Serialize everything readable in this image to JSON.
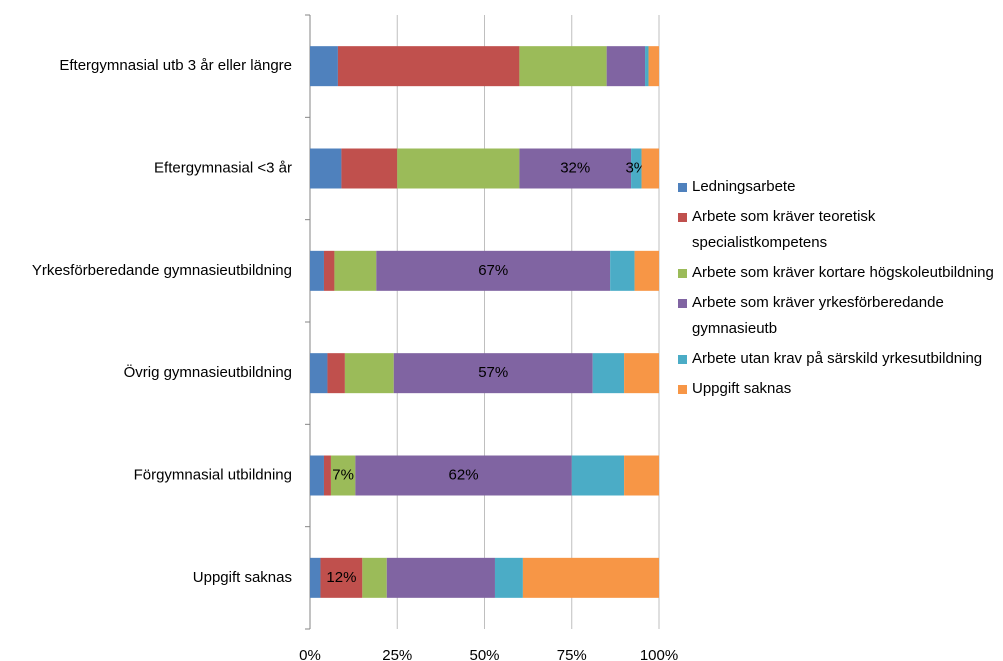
{
  "chart_data": {
    "type": "stacked-bar-horizontal",
    "categories": [
      "Eftergymnasial utb 3 år eller längre",
      "Eftergymnasial <3 år",
      "Yrkesförberedande gymnasieutbildning",
      "Övrig gymnasieutbildning",
      "Förgymnasial utbildning",
      "Uppgift saknas"
    ],
    "series": [
      {
        "name": "Ledningsarbete",
        "color": "#4f81bd",
        "values": [
          8,
          9,
          4,
          5,
          4,
          3
        ],
        "value_labels": [
          null,
          null,
          null,
          null,
          null,
          null
        ]
      },
      {
        "name": "Arbete som kräver teoretisk specialistkompetens",
        "color": "#c0504d",
        "values": [
          52,
          16,
          3,
          5,
          2,
          12
        ],
        "value_labels": [
          null,
          null,
          null,
          null,
          null,
          "12%"
        ]
      },
      {
        "name": "Arbete som kräver kortare högskoleutbildning",
        "color": "#9bbb59",
        "values": [
          25,
          35,
          12,
          14,
          7,
          7
        ],
        "value_labels": [
          null,
          null,
          null,
          null,
          "7%",
          null
        ]
      },
      {
        "name": "Arbete som kräver yrkesförberedande gymnasieutb",
        "color": "#8064a2",
        "values": [
          11,
          32,
          67,
          57,
          62,
          31
        ],
        "value_labels": [
          null,
          "32%",
          "67%",
          "57%",
          "62%",
          null
        ]
      },
      {
        "name": "Arbete utan krav på särskild yrkesutbildning",
        "color": "#4bacc6",
        "values": [
          1,
          3,
          7,
          9,
          15,
          8
        ],
        "value_labels": [
          null,
          "3%",
          null,
          null,
          null,
          null
        ]
      },
      {
        "name": "Uppgift saknas",
        "color": "#f79646",
        "values": [
          3,
          5,
          7,
          10,
          10,
          39
        ],
        "value_labels": [
          null,
          null,
          null,
          null,
          null,
          null
        ]
      }
    ],
    "xlim": [
      0,
      100
    ],
    "xticks": [
      {
        "value": 0,
        "label": "0%"
      },
      {
        "value": 25,
        "label": "25%"
      },
      {
        "value": 50,
        "label": "50%"
      },
      {
        "value": 75,
        "label": "75%"
      },
      {
        "value": 100,
        "label": "100%"
      }
    ],
    "grid": true,
    "legend": "right"
  }
}
